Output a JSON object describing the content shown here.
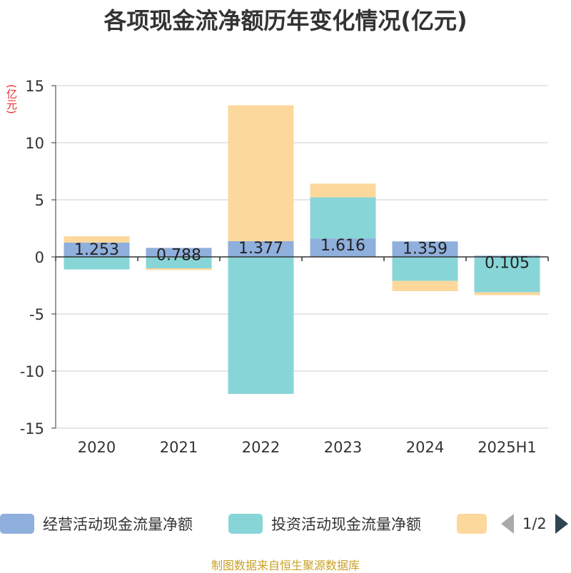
{
  "title": "各项现金流净额历年变化情况(亿元)",
  "unit_label": "(亿元)",
  "source": "制图数据来自恒生聚源数据库",
  "colors": {
    "operating": "#8fafdc",
    "investing": "#88d5d8",
    "financing": "#fdd89c",
    "grid": "#cccccc",
    "axis": "#333333"
  },
  "legend": {
    "items": [
      {
        "label": "经营活动现金流量净额",
        "color": "#8fafdc"
      },
      {
        "label": "投资活动现金流量净额",
        "color": "#88d5d8"
      },
      {
        "label": "",
        "color": "#fdd89c"
      }
    ],
    "page": "1/2"
  },
  "chart_data": {
    "type": "bar",
    "stacked": true,
    "categories": [
      "2020",
      "2021",
      "2022",
      "2023",
      "2024",
      "2025H1"
    ],
    "ylim": [
      -15,
      15
    ],
    "yticks": [
      15,
      10,
      5,
      0,
      -5,
      -10,
      -15
    ],
    "grid": true,
    "legend_position": "bottom",
    "series": [
      {
        "name": "经营活动现金流量净额",
        "color": "#8fafdc",
        "values": [
          1.253,
          0.788,
          1.377,
          1.616,
          1.359,
          0.105
        ],
        "labels": [
          "1.253",
          "0.788",
          "1.377",
          "1.616",
          "1.359",
          "0.105"
        ]
      },
      {
        "name": "投资活动现金流量净额",
        "color": "#88d5d8",
        "values": [
          -1.1,
          -1.0,
          -12.0,
          3.6,
          -2.1,
          -3.1
        ]
      },
      {
        "color": "#fdd89c",
        "values": [
          0.55,
          -0.15,
          11.9,
          1.2,
          -0.9,
          -0.25
        ]
      }
    ]
  }
}
